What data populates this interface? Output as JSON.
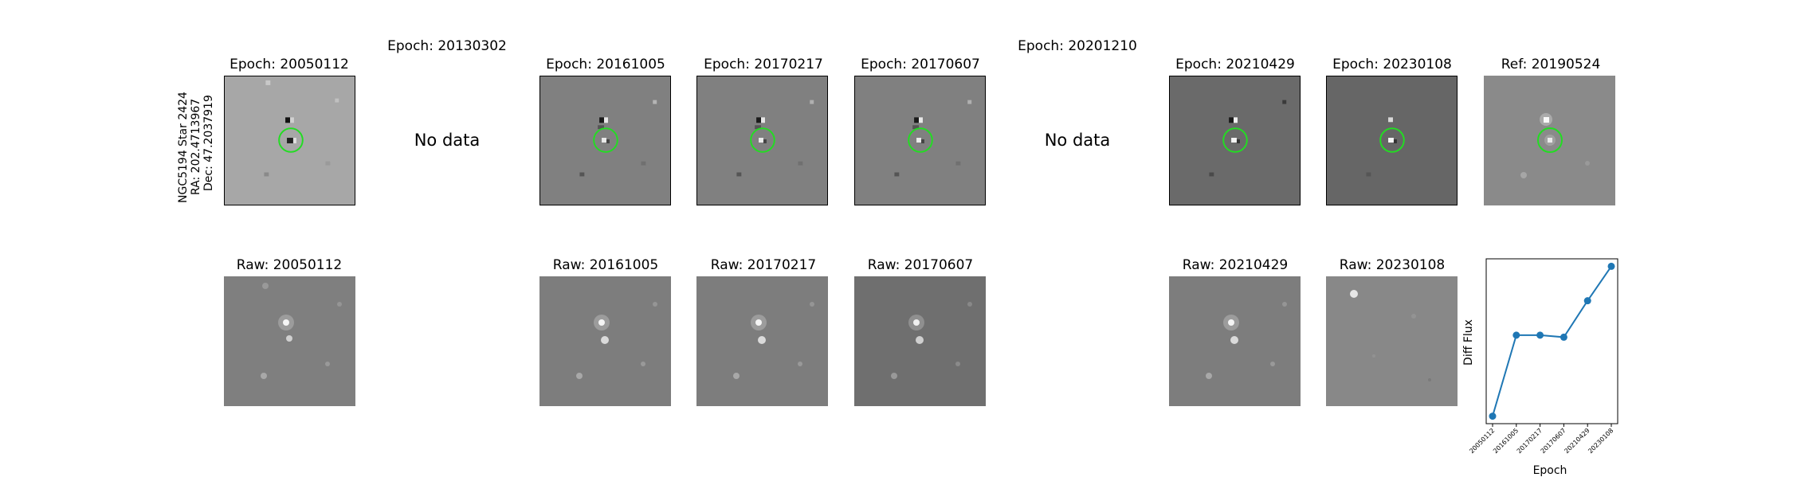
{
  "star": {
    "line1": "NGC5194 Star 2424",
    "line2": "RA: 202.4713967",
    "line3": "Dec: 47.2037919"
  },
  "top_row": [
    {
      "title": "Epoch: 20050112",
      "has_data": true,
      "bg": "#a7a7a7"
    },
    {
      "title": "Epoch: 20130302",
      "has_data": false,
      "nodata_text": "No data"
    },
    {
      "title": "Epoch: 20161005",
      "has_data": true,
      "bg": "#808080"
    },
    {
      "title": "Epoch: 20170217",
      "has_data": true,
      "bg": "#808080"
    },
    {
      "title": "Epoch: 20170607",
      "has_data": true,
      "bg": "#808080"
    },
    {
      "title": "Epoch: 20201210",
      "has_data": false,
      "nodata_text": "No data"
    },
    {
      "title": "Epoch: 20210429",
      "has_data": true,
      "bg": "#6a6a6a"
    },
    {
      "title": "Epoch: 20230108",
      "has_data": true,
      "bg": "#666666"
    },
    {
      "title": "Ref: 20190524",
      "has_data": true,
      "bg": "#8a8a8a"
    }
  ],
  "bottom_row": [
    {
      "title": "Raw: 20050112",
      "bg": "#7f7f7f"
    },
    {
      "title": "Raw: 20161005",
      "bg": "#7d7d7d"
    },
    {
      "title": "Raw: 20170217",
      "bg": "#7d7d7d"
    },
    {
      "title": "Raw: 20170607",
      "bg": "#6f6f6f"
    },
    {
      "title": "Raw: 20210429",
      "bg": "#7d7d7d"
    },
    {
      "title": "Raw: 20230108",
      "bg": "#858585"
    }
  ],
  "colors": {
    "circle": "#22dd22",
    "line": "#1f77b4"
  },
  "chart_data": {
    "type": "line",
    "x": [
      "20050112",
      "20161005",
      "20170217",
      "20170607",
      "20210429",
      "20230108"
    ],
    "y": [
      0.0,
      0.4,
      0.4,
      0.39,
      0.57,
      0.74
    ],
    "xlabel": "Epoch",
    "ylabel": "Diff Flux"
  }
}
